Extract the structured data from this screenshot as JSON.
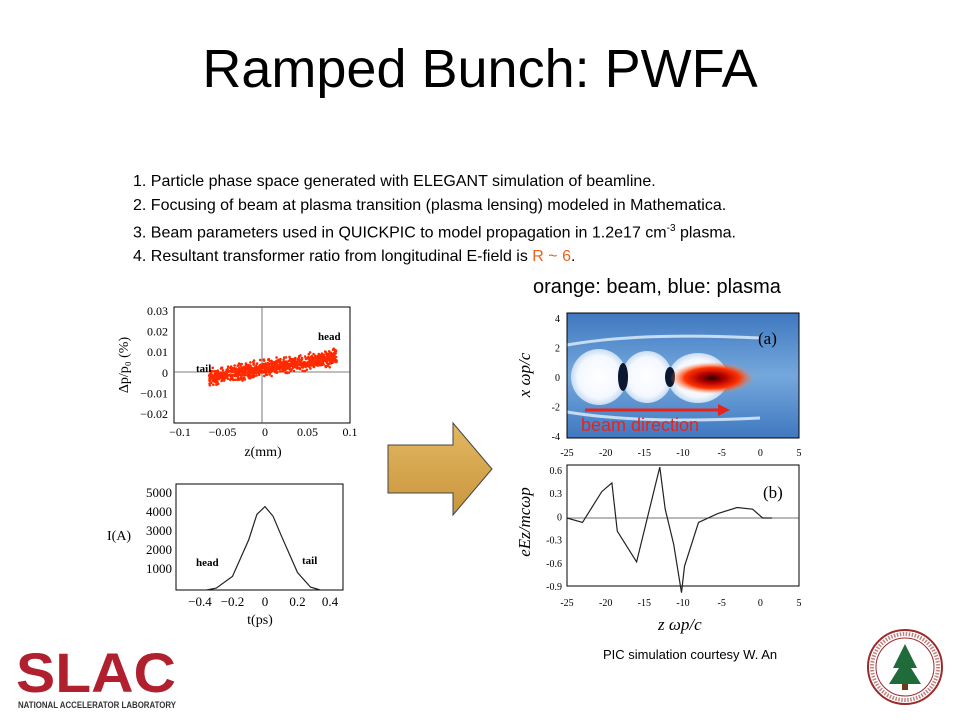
{
  "slide": {
    "title": "Ramped Bunch: PWFA",
    "points": [
      {
        "prefix": "1. Particle phase space generated with ELEGANT simulation of beamline."
      },
      {
        "prefix": "2. Focusing of beam at plasma transition (plasma lensing) modeled in Mathematica."
      },
      {
        "prefix": "3. Beam parameters used in QUICKPIC to model propagation in 1.2e17 cm",
        "sup": "-3",
        "suffix": " plasma."
      },
      {
        "prefix": "4. Resultant transformer ratio from longitudinal E-field is ",
        "highlight": "R ~ 6",
        "suffix": "."
      }
    ],
    "legend": "orange: beam, blue: plasma",
    "courtesy": "PIC simulation courtesy W. An",
    "beam_direction": "beam direction",
    "colors": {
      "beam": "#ff2a00",
      "accent": "#e8631c",
      "arrow_fill": "#d4a54a",
      "slac_red": "#b1202f"
    }
  },
  "logos": {
    "slac": "SLAC",
    "slac_sub": "NATIONAL ACCELERATOR LABORATORY"
  },
  "chart_data": [
    {
      "type": "scatter",
      "xlabel": "z(mm)",
      "ylabel": "Δp/p₀ (%)",
      "xlim": [
        -0.1,
        0.1
      ],
      "ylim": [
        -0.02,
        0.03
      ],
      "xticks": [
        "−0.1",
        "−0.05",
        "0",
        "0.05",
        "0.1"
      ],
      "yticks": [
        "0.03",
        "0.02",
        "0.01",
        "0",
        "−0.01",
        "−0.02"
      ],
      "annotations": [
        "tail",
        "head"
      ]
    },
    {
      "type": "line",
      "xlabel": "t(ps)",
      "ylabel": "I(A)",
      "xticks": [
        "−0.4",
        "−0.2",
        "0",
        "0.2",
        "0.4"
      ],
      "yticks": [
        "5000",
        "4000",
        "3000",
        "2000",
        "1000"
      ],
      "annotations": [
        "head",
        "tail"
      ],
      "x": [
        -0.36,
        -0.3,
        -0.2,
        -0.1,
        -0.05,
        0,
        0.05,
        0.1,
        0.2,
        0.28,
        0.34
      ],
      "y": [
        0,
        100,
        700,
        2600,
        3900,
        4300,
        3800,
        2800,
        900,
        150,
        0
      ]
    },
    {
      "type": "heatmap",
      "panel_label": "(a)",
      "xlabel": "z ωp/c",
      "ylabel": "x ωp/c",
      "xticks": [
        "-25",
        "-20",
        "-15",
        "-10",
        "-5",
        "0",
        "5"
      ],
      "yticks": [
        "4",
        "2",
        "0",
        "-2",
        "-4"
      ]
    },
    {
      "type": "line",
      "panel_label": "(b)",
      "xlabel": "z ωp/c",
      "ylabel": "eEz/mcωp",
      "xticks": [
        "-25",
        "-20",
        "-15",
        "-10",
        "-5",
        "0",
        "5"
      ],
      "yticks": [
        "0.6",
        "0.3",
        "0",
        "-0.3",
        "-0.6",
        "-0.9"
      ],
      "x": [
        -25,
        -23,
        -20.5,
        -19.2,
        -18.5,
        -16,
        -13.5,
        -13.0,
        -12.3,
        -11.2,
        -10.2,
        -9.8,
        -8,
        -5.5,
        -3,
        -1,
        0.3,
        1.5
      ],
      "y": [
        0,
        -0.05,
        0.3,
        0.4,
        -0.15,
        -0.5,
        0.4,
        0.58,
        0.1,
        -0.3,
        -0.85,
        -0.55,
        -0.05,
        0.05,
        0.12,
        0.1,
        0.0,
        0.0
      ]
    }
  ]
}
